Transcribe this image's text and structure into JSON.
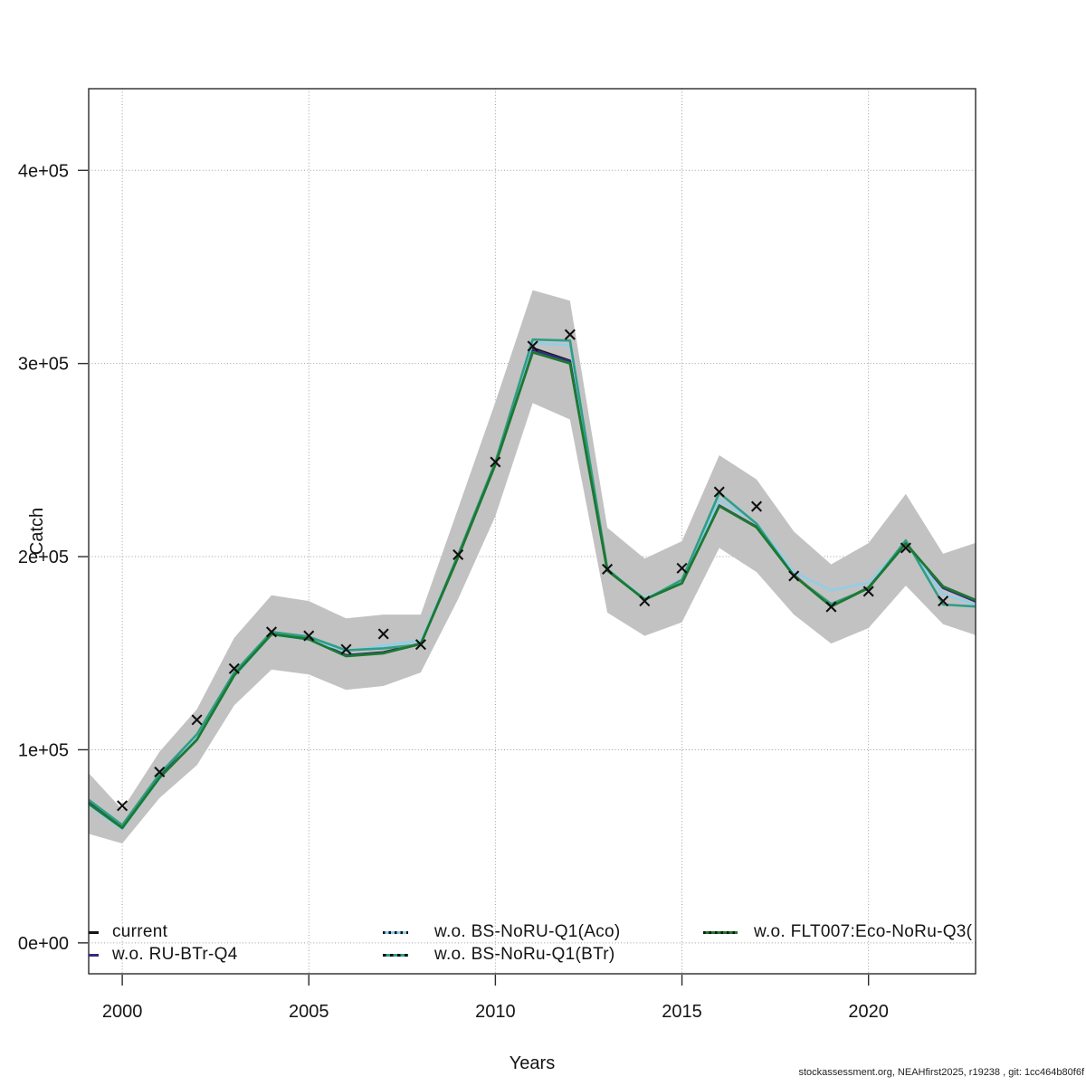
{
  "footer": "stockassessment.org, NEAHfirst2025, r19238 , git: 1cc464b80f6f",
  "chart_data": {
    "type": "line",
    "title": "",
    "xlabel": "Years",
    "ylabel": "Catch",
    "grid": true,
    "legend_position": "bottom-inside",
    "xlim": [
      1999.1,
      2022.87
    ],
    "ylim": [
      -16000,
      442300
    ],
    "x_ticks": [
      2000,
      2005,
      2010,
      2015,
      2020
    ],
    "y_ticks": [
      {
        "value": 0,
        "label": "0e+00"
      },
      {
        "value": 100000,
        "label": "1e+05"
      },
      {
        "value": 200000,
        "label": "2e+05"
      },
      {
        "value": 300000,
        "label": "3e+05"
      },
      {
        "value": 400000,
        "label": "4e+05"
      }
    ],
    "years": [
      1999,
      2000,
      2001,
      2002,
      2003,
      2004,
      2005,
      2006,
      2007,
      2008,
      2009,
      2010,
      2011,
      2012,
      2013,
      2014,
      2015,
      2016,
      2017,
      2018,
      2019,
      2020,
      2021,
      2022,
      2023
    ],
    "band": {
      "color": "#c2c2c2",
      "upper": [
        90000,
        69000,
        99000,
        121000,
        158000,
        180000,
        177000,
        168000,
        170000,
        170000,
        225000,
        280000,
        338000,
        332500,
        215000,
        199000,
        208000,
        252500,
        240000,
        213000,
        196000,
        207000,
        232500,
        201500,
        208000
      ],
      "lower": [
        57000,
        51500,
        75000,
        92000,
        123000,
        141500,
        139000,
        131000,
        133000,
        140000,
        178000,
        221000,
        279500,
        271000,
        171000,
        159000,
        166000,
        204500,
        192000,
        170000,
        155000,
        163000,
        185000,
        165000,
        158500
      ]
    },
    "series": [
      {
        "name": "current",
        "color": "#141414",
        "width": 2.4,
        "values": [
          74000,
          60000,
          86000,
          106000,
          139000,
          160000,
          157500,
          149000,
          150500,
          155000,
          200000,
          248000,
          308000,
          301500,
          193000,
          178000,
          186500,
          226500,
          215500,
          190500,
          174500,
          184000,
          207000,
          184000,
          176000
        ]
      },
      {
        "name": "w.o. RU-BTr-Q4",
        "color": "#312C80",
        "width": 2.8,
        "values": [
          73800,
          59800,
          85800,
          105800,
          138800,
          159900,
          157300,
          148800,
          150200,
          154900,
          199900,
          247900,
          307200,
          301000,
          192900,
          177900,
          186300,
          226300,
          215300,
          190300,
          174300,
          183900,
          206900,
          183800,
          175800
        ]
      },
      {
        "name": "w.o. BS-NoRU-Q1(Aco)",
        "color": "#8DCFEB",
        "width": 2.4,
        "values": [
          72500,
          58800,
          85000,
          106500,
          138000,
          159500,
          157000,
          151000,
          154000,
          156500,
          200500,
          248500,
          310500,
          309500,
          193500,
          178500,
          187000,
          229500,
          217500,
          192000,
          182500,
          186500,
          207500,
          180500,
          174500
        ]
      },
      {
        "name": "w.o. BS-NoRu-Q1(BTr)",
        "color": "#2F9E86",
        "width": 2.6,
        "values": [
          75500,
          61000,
          87500,
          108000,
          140000,
          161000,
          158500,
          151500,
          152500,
          154500,
          201000,
          249000,
          312400,
          311900,
          193500,
          177500,
          188000,
          233000,
          217000,
          190000,
          175500,
          183500,
          208400,
          175200,
          174000
        ]
      },
      {
        "name": "w.o. FLT007:Eco-NoRu-Q3(",
        "color": "#1E7830",
        "width": 2.8,
        "values": [
          73500,
          59500,
          85500,
          105200,
          138500,
          159800,
          157200,
          148500,
          150000,
          154800,
          199800,
          247800,
          305800,
          300100,
          192800,
          177800,
          186200,
          226200,
          215200,
          190200,
          174200,
          183800,
          206800,
          184500,
          176500
        ]
      }
    ],
    "observations": {
      "marker": "x",
      "color": "#101010",
      "years": [
        2000,
        2001,
        2002,
        2003,
        2004,
        2005,
        2006,
        2007,
        2008,
        2009,
        2010,
        2011,
        2012,
        2013,
        2014,
        2015,
        2016,
        2017,
        2018,
        2019,
        2020,
        2021,
        2022,
        2023
      ],
      "values": [
        71000,
        88500,
        115500,
        142000,
        161000,
        159000,
        152000,
        160000,
        154500,
        201000,
        249000,
        309000,
        315000,
        193500,
        177000,
        194000,
        233500,
        226000,
        190000,
        174000,
        182000,
        204500,
        177000,
        178000
      ]
    },
    "legend": [
      {
        "label": "current",
        "color": "#141414",
        "pattern": "solid"
      },
      {
        "label": "w.o. RU-BTr-Q4",
        "color": "#312C80",
        "pattern": "solid"
      },
      {
        "label": "w.o. BS-NoRU-Q1(Aco)",
        "color": "#8DCFEB",
        "pattern": "dotted-black"
      },
      {
        "label": "w.o. BS-NoRu-Q1(BTr)",
        "color": "#2F9E86",
        "pattern": "dashed-black"
      },
      {
        "label": "w.o. FLT007:Eco-NoRu-Q3(",
        "color": "#1E7830",
        "pattern": "dotted-black"
      }
    ]
  }
}
